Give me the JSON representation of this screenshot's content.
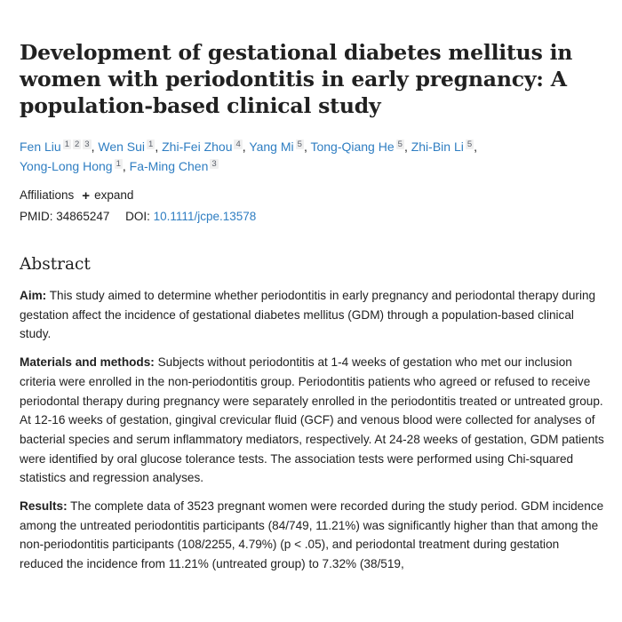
{
  "article": {
    "title": "Development of gestational diabetes mellitus in women with periodontitis in early pregnancy: A population-based clinical study",
    "authors": [
      {
        "name": "Fen Liu",
        "affiliations": [
          "1",
          "2",
          "3"
        ]
      },
      {
        "name": "Wen Sui",
        "affiliations": [
          "1"
        ]
      },
      {
        "name": "Zhi-Fei Zhou",
        "affiliations": [
          "4"
        ]
      },
      {
        "name": "Yang Mi",
        "affiliations": [
          "5"
        ]
      },
      {
        "name": "Tong-Qiang He",
        "affiliations": [
          "5"
        ]
      },
      {
        "name": "Zhi-Bin Li",
        "affiliations": [
          "5"
        ]
      },
      {
        "name": "Yong-Long Hong",
        "affiliations": [
          "1"
        ]
      },
      {
        "name": "Fa-Ming Chen",
        "affiliations": [
          "3"
        ]
      }
    ],
    "affiliations_label": "Affiliations",
    "expand_label": "expand",
    "expand_icon": "plus-icon",
    "pmid_label": "PMID:",
    "pmid": "34865247",
    "doi_label": "DOI:",
    "doi": "10.1111/jcpe.13578"
  },
  "abstract": {
    "heading": "Abstract",
    "sections": [
      {
        "label": "Aim:",
        "text": "This study aimed to determine whether periodontitis in early pregnancy and periodontal therapy during gestation affect the incidence of gestational diabetes mellitus (GDM) through a population-based clinical study."
      },
      {
        "label": "Materials and methods:",
        "text": "Subjects without periodontitis at 1-4 weeks of gestation who met our inclusion criteria were enrolled in the non-periodontitis group. Periodontitis patients who agreed or refused to receive periodontal therapy during pregnancy were separately enrolled in the periodontitis treated or untreated group. At 12-16 weeks of gestation, gingival crevicular fluid (GCF) and venous blood were collected for analyses of bacterial species and serum inflammatory mediators, respectively. At 24-28 weeks of gestation, GDM patients were identified by oral glucose tolerance tests. The association tests were performed using Chi-squared statistics and regression analyses."
      },
      {
        "label": "Results:",
        "text": "The complete data of 3523 pregnant women were recorded during the study period. GDM incidence among the untreated periodontitis participants (84/749, 11.21%) was significantly higher than that among the non-periodontitis participants (108/2255, 4.79%) (p < .05), and periodontal treatment during gestation reduced the incidence from 11.21% (untreated group) to 7.32% (38/519,"
      }
    ]
  },
  "colors": {
    "link": "#2f7ec2",
    "text": "#212121",
    "sup_bg": "#efefef",
    "sup_text": "#5b616b"
  }
}
